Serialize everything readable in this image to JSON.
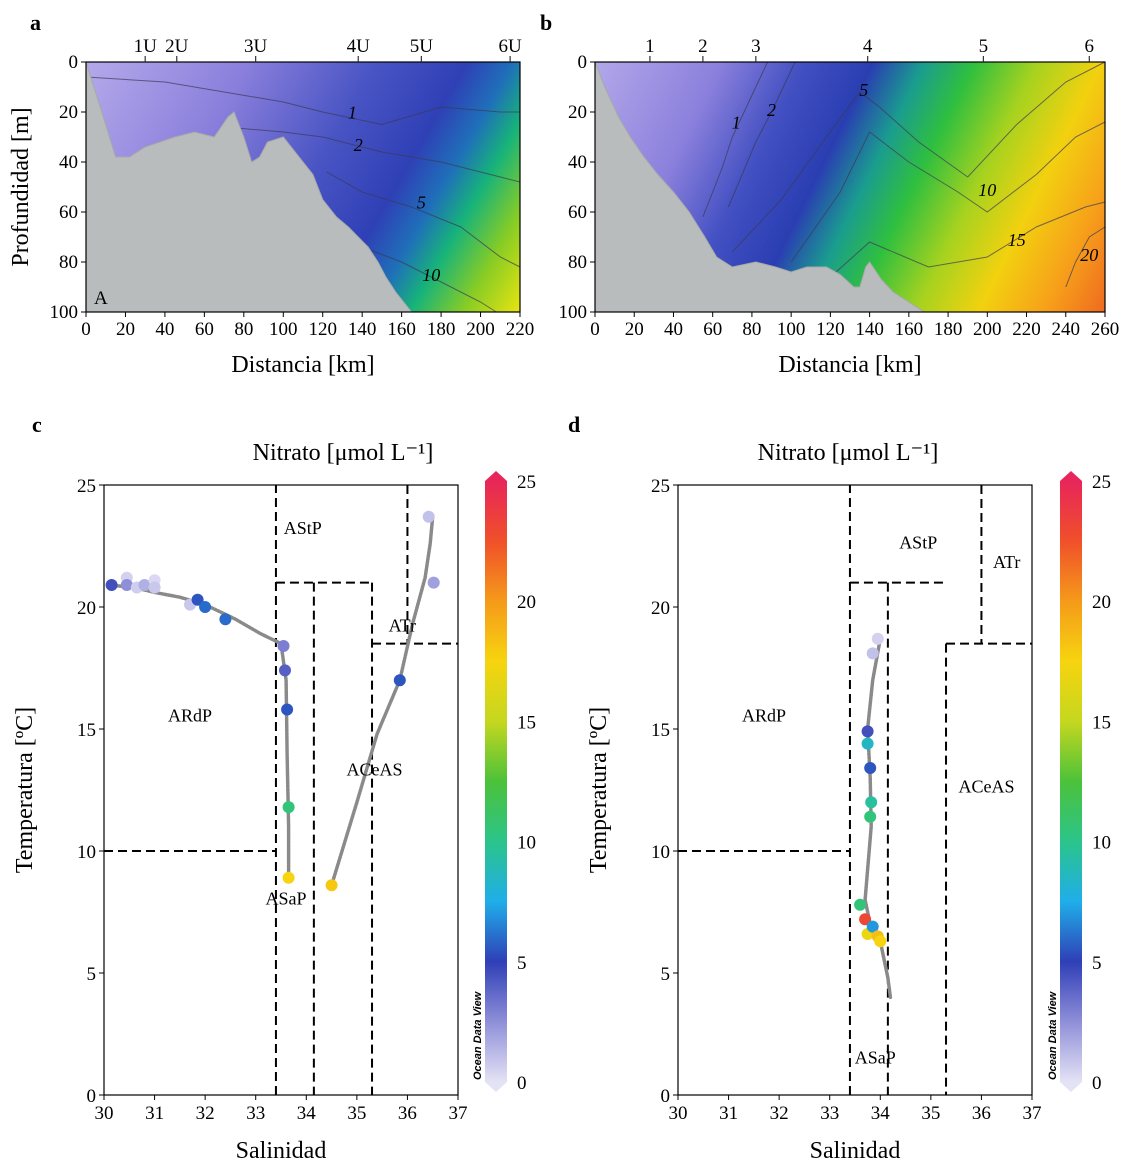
{
  "chart_data": [
    {
      "panel": "a",
      "type": "heatmap",
      "xlabel": "Distancia [km]",
      "ylabel": "Profundidad [m]",
      "xlim": [
        0,
        220
      ],
      "ylim": [
        100,
        0
      ],
      "xticks": [
        0,
        20,
        40,
        60,
        80,
        100,
        120,
        140,
        160,
        180,
        200,
        220
      ],
      "yticks": [
        0,
        20,
        40,
        60,
        80,
        100
      ],
      "stations": [
        {
          "label": "1U",
          "x": 30
        },
        {
          "label": "2U",
          "x": 46
        },
        {
          "label": "3U",
          "x": 86
        },
        {
          "label": "4U",
          "x": 138
        },
        {
          "label": "5U",
          "x": 170
        },
        {
          "label": "6U",
          "x": 215
        }
      ],
      "contour_labels": [
        {
          "text": "1",
          "x": 135,
          "y": 21
        },
        {
          "text": "2",
          "x": 138,
          "y": 34
        },
        {
          "text": "5",
          "x": 170,
          "y": 57
        },
        {
          "text": "10",
          "x": 175,
          "y": 86
        }
      ],
      "corner_label": "A",
      "bathymetry": [
        [
          0,
          0
        ],
        [
          8,
          20
        ],
        [
          15,
          38
        ],
        [
          22,
          38
        ],
        [
          30,
          34
        ],
        [
          45,
          30
        ],
        [
          55,
          28
        ],
        [
          65,
          30
        ],
        [
          72,
          22
        ],
        [
          75,
          20
        ],
        [
          80,
          30
        ],
        [
          84,
          40
        ],
        [
          88,
          38
        ],
        [
          92,
          32
        ],
        [
          100,
          30
        ],
        [
          108,
          38
        ],
        [
          115,
          45
        ],
        [
          120,
          55
        ],
        [
          127,
          62
        ],
        [
          133,
          66
        ],
        [
          138,
          70
        ],
        [
          143,
          74
        ],
        [
          148,
          80
        ],
        [
          152,
          86
        ],
        [
          157,
          92
        ],
        [
          162,
          97
        ],
        [
          165,
          100
        ],
        [
          0,
          100
        ]
      ]
    },
    {
      "panel": "b",
      "type": "heatmap",
      "xlabel": "Distancia [km]",
      "ylabel": "",
      "xlim": [
        0,
        260
      ],
      "ylim": [
        100,
        0
      ],
      "xticks": [
        0,
        20,
        40,
        60,
        80,
        100,
        120,
        140,
        160,
        180,
        200,
        220,
        240,
        260
      ],
      "yticks": [
        0,
        20,
        40,
        60,
        80,
        100
      ],
      "stations": [
        {
          "label": "1",
          "x": 28
        },
        {
          "label": "2",
          "x": 55
        },
        {
          "label": "3",
          "x": 82
        },
        {
          "label": "4",
          "x": 139
        },
        {
          "label": "5",
          "x": 198
        },
        {
          "label": "6",
          "x": 252
        }
      ],
      "contour_labels": [
        {
          "text": "1",
          "x": 72,
          "y": 25
        },
        {
          "text": "2",
          "x": 90,
          "y": 20
        },
        {
          "text": "5",
          "x": 137,
          "y": 12
        },
        {
          "text": "10",
          "x": 200,
          "y": 52
        },
        {
          "text": "15",
          "x": 215,
          "y": 72
        },
        {
          "text": "20",
          "x": 252,
          "y": 78
        }
      ],
      "bathymetry": [
        [
          0,
          0
        ],
        [
          5,
          10
        ],
        [
          12,
          22
        ],
        [
          18,
          30
        ],
        [
          25,
          38
        ],
        [
          32,
          45
        ],
        [
          40,
          52
        ],
        [
          48,
          60
        ],
        [
          56,
          70
        ],
        [
          62,
          78
        ],
        [
          70,
          82
        ],
        [
          82,
          80
        ],
        [
          92,
          82
        ],
        [
          100,
          84
        ],
        [
          108,
          82
        ],
        [
          118,
          82
        ],
        [
          125,
          85
        ],
        [
          132,
          90
        ],
        [
          135,
          90
        ],
        [
          138,
          82
        ],
        [
          140,
          80
        ],
        [
          146,
          87
        ],
        [
          152,
          92
        ],
        [
          160,
          96
        ],
        [
          168,
          100
        ],
        [
          0,
          100
        ]
      ]
    },
    {
      "panel": "c",
      "type": "scatter",
      "title": "Nitrato [μmol L⁻¹]",
      "xlabel": "Salinidad",
      "ylabel": "Temperatura [ºC]",
      "xlim": [
        30,
        37
      ],
      "ylim": [
        0,
        25
      ],
      "xticks": [
        30,
        31,
        32,
        33,
        34,
        35,
        36,
        37
      ],
      "yticks": [
        0,
        5,
        10,
        15,
        20,
        25
      ],
      "colorbar": {
        "min": 0,
        "max": 25,
        "ticks": [
          0,
          5,
          10,
          15,
          20,
          25
        ],
        "watermark": "Ocean Data View"
      },
      "water_masses": [
        {
          "label": "AStP",
          "x": 33.93,
          "y": 23.0
        },
        {
          "label": "ATr",
          "x": 35.9,
          "y": 19.0
        },
        {
          "label": "ARdP",
          "x": 31.7,
          "y": 15.3
        },
        {
          "label": "ACeAS",
          "x": 35.35,
          "y": 13.1
        },
        {
          "label": "ASaP",
          "x": 33.6,
          "y": 7.8
        }
      ],
      "boundaries": [
        [
          [
            33.4,
            0
          ],
          [
            33.4,
            25
          ]
        ],
        [
          [
            36.0,
            25
          ],
          [
            36.0,
            18.5
          ]
        ],
        [
          [
            33.4,
            21.0
          ],
          [
            35.3,
            21.0
          ]
        ],
        [
          [
            34.15,
            21.0
          ],
          [
            34.15,
            0
          ]
        ],
        [
          [
            35.3,
            21.0
          ],
          [
            35.3,
            0
          ]
        ],
        [
          [
            35.3,
            18.5
          ],
          [
            37.0,
            18.5
          ]
        ],
        [
          [
            30.0,
            10.0
          ],
          [
            33.4,
            10.0
          ]
        ]
      ],
      "trace": [
        [
          [
            30.1,
            20.9
          ],
          [
            30.6,
            20.8
          ],
          [
            31.0,
            20.6
          ],
          [
            31.5,
            20.4
          ],
          [
            32.0,
            20.1
          ],
          [
            32.6,
            19.5
          ],
          [
            33.1,
            18.9
          ],
          [
            33.5,
            18.5
          ],
          [
            33.6,
            17.0
          ],
          [
            33.62,
            14.0
          ],
          [
            33.65,
            11.0
          ],
          [
            33.65,
            8.9
          ]
        ],
        [
          [
            34.5,
            8.6
          ],
          [
            35.0,
            12.0
          ],
          [
            35.4,
            14.8
          ],
          [
            35.85,
            17.0
          ],
          [
            36.1,
            19.3
          ],
          [
            36.35,
            21.2
          ],
          [
            36.45,
            22.6
          ],
          [
            36.5,
            23.7
          ]
        ]
      ],
      "points": [
        {
          "s": 30.15,
          "t": 20.9,
          "no3": 4.5
        },
        {
          "s": 30.45,
          "t": 21.2,
          "no3": 0.5
        },
        {
          "s": 30.45,
          "t": 20.9,
          "no3": 2.5
        },
        {
          "s": 30.65,
          "t": 20.8,
          "no3": 0.6
        },
        {
          "s": 30.8,
          "t": 20.9,
          "no3": 1.5
        },
        {
          "s": 31.0,
          "t": 21.1,
          "no3": 0.3
        },
        {
          "s": 31.0,
          "t": 20.8,
          "no3": 0.8
        },
        {
          "s": 31.7,
          "t": 20.1,
          "no3": 0.8
        },
        {
          "s": 31.85,
          "t": 20.3,
          "no3": 5.5
        },
        {
          "s": 32.0,
          "t": 20.0,
          "no3": 6.0
        },
        {
          "s": 32.4,
          "t": 19.5,
          "no3": 6.0
        },
        {
          "s": 33.55,
          "t": 18.4,
          "no3": 3.0
        },
        {
          "s": 33.58,
          "t": 17.4,
          "no3": 4.0
        },
        {
          "s": 33.62,
          "t": 15.8,
          "no3": 5.5
        },
        {
          "s": 33.65,
          "t": 11.8,
          "no3": 10.5
        },
        {
          "s": 33.65,
          "t": 8.9,
          "no3": 17.5
        },
        {
          "s": 34.5,
          "t": 8.6,
          "no3": 18.0
        },
        {
          "s": 35.85,
          "t": 17.0,
          "no3": 5.5
        },
        {
          "s": 36.42,
          "t": 23.7,
          "no3": 1.0
        },
        {
          "s": 36.52,
          "t": 21.0,
          "no3": 2.0
        }
      ]
    },
    {
      "panel": "d",
      "type": "scatter",
      "title": "Nitrato [μmol L⁻¹]",
      "xlabel": "Salinidad",
      "ylabel": "Temperatura [ºC]",
      "xlim": [
        30,
        37
      ],
      "ylim": [
        0,
        25
      ],
      "xticks": [
        30,
        31,
        32,
        33,
        34,
        35,
        36,
        37
      ],
      "yticks": [
        0,
        5,
        10,
        15,
        20,
        25
      ],
      "colorbar": {
        "min": 0,
        "max": 25,
        "ticks": [
          0,
          5,
          10,
          15,
          20,
          25
        ],
        "watermark": "Ocean Data View"
      },
      "water_masses": [
        {
          "label": "AStP",
          "x": 34.75,
          "y": 22.4
        },
        {
          "label": "ATr",
          "x": 36.5,
          "y": 21.6
        },
        {
          "label": "ARdP",
          "x": 31.7,
          "y": 15.3
        },
        {
          "label": "ACeAS",
          "x": 36.1,
          "y": 12.4
        },
        {
          "label": "ASaP",
          "x": 33.9,
          "y": 1.3
        }
      ],
      "boundaries": [
        [
          [
            33.4,
            0
          ],
          [
            33.4,
            25
          ]
        ],
        [
          [
            36.0,
            25
          ],
          [
            36.0,
            18.5
          ]
        ],
        [
          [
            33.4,
            21.0
          ],
          [
            35.3,
            21.0
          ]
        ],
        [
          [
            34.15,
            21.0
          ],
          [
            34.15,
            0
          ]
        ],
        [
          [
            35.3,
            18.5
          ],
          [
            35.3,
            0
          ]
        ],
        [
          [
            35.3,
            18.5
          ],
          [
            37.0,
            18.5
          ]
        ],
        [
          [
            30.0,
            10.0
          ],
          [
            33.4,
            10.0
          ]
        ]
      ],
      "trace": [
        [
          [
            34.0,
            18.7
          ],
          [
            33.85,
            17.0
          ],
          [
            33.75,
            15.0
          ],
          [
            33.8,
            13.0
          ],
          [
            33.82,
            11.0
          ],
          [
            33.7,
            8.0
          ],
          [
            33.8,
            7.0
          ],
          [
            34.0,
            6.3
          ],
          [
            34.15,
            4.8
          ],
          [
            34.2,
            4.0
          ]
        ]
      ],
      "points": [
        {
          "s": 33.95,
          "t": 18.7,
          "no3": 0.5
        },
        {
          "s": 33.85,
          "t": 18.1,
          "no3": 1.0
        },
        {
          "s": 33.75,
          "t": 14.9,
          "no3": 4.5
        },
        {
          "s": 33.75,
          "t": 14.4,
          "no3": 8.5
        },
        {
          "s": 33.8,
          "t": 13.4,
          "no3": 5.5
        },
        {
          "s": 33.82,
          "t": 12.0,
          "no3": 9.5
        },
        {
          "s": 33.8,
          "t": 11.4,
          "no3": 10.5
        },
        {
          "s": 33.6,
          "t": 7.8,
          "no3": 10.5
        },
        {
          "s": 33.7,
          "t": 7.2,
          "no3": 23.0
        },
        {
          "s": 33.75,
          "t": 6.6,
          "no3": 17.0
        },
        {
          "s": 33.85,
          "t": 6.9,
          "no3": 7.0
        },
        {
          "s": 33.95,
          "t": 6.5,
          "no3": 18.5
        },
        {
          "s": 34.0,
          "t": 6.3,
          "no3": 17.5
        }
      ]
    }
  ]
}
